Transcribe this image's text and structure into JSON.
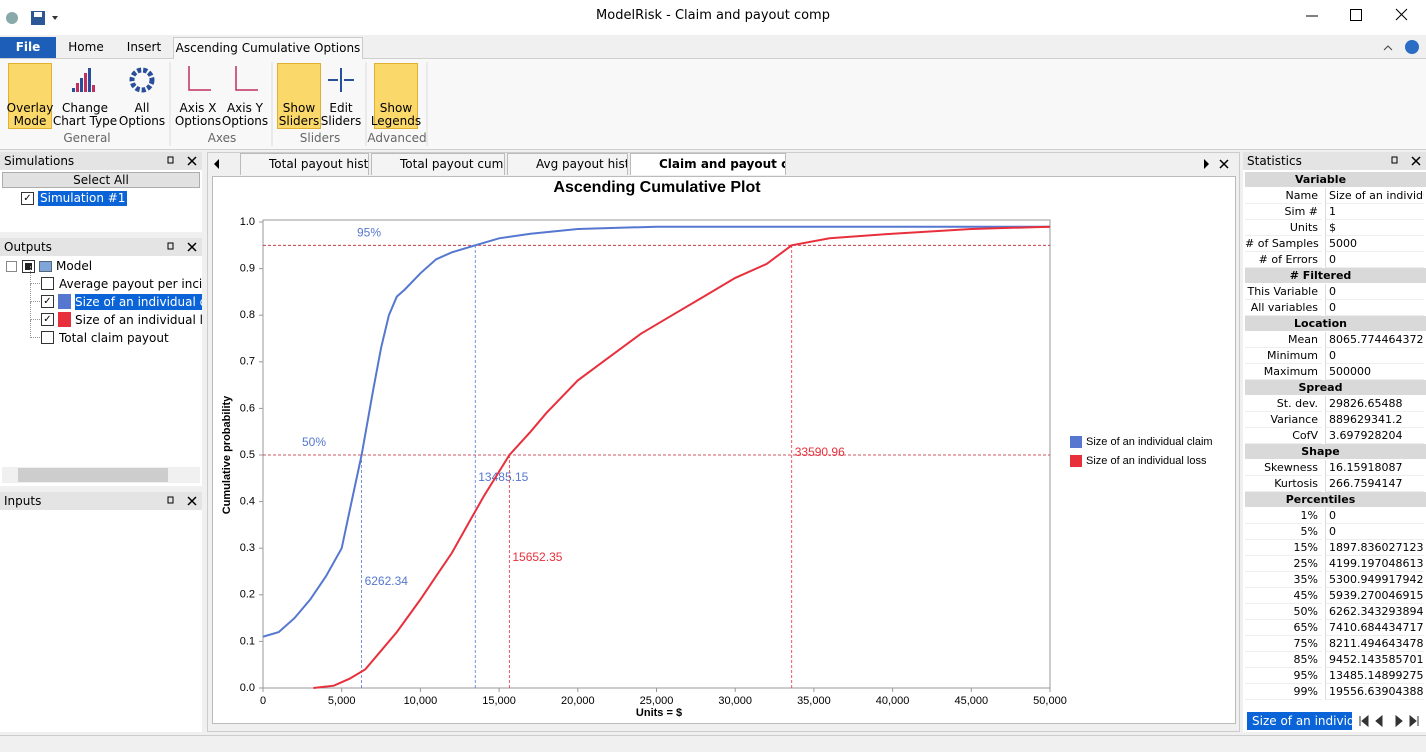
{
  "window": {
    "title": "ModelRisk - Claim and payout comp"
  },
  "ribbon": {
    "tabs": [
      "File",
      "Home",
      "Insert",
      "Ascending Cumulative Options"
    ],
    "groups": [
      {
        "label": "General",
        "buttons": [
          {
            "lines": [
              "Overlay",
              "Mode"
            ],
            "active": true
          },
          {
            "lines": [
              "Change",
              "Chart Type"
            ],
            "active": false
          },
          {
            "lines": [
              "All",
              "Options"
            ],
            "active": false
          }
        ]
      },
      {
        "label": "Axes",
        "buttons": [
          {
            "lines": [
              "Axis X",
              "Options"
            ],
            "active": false
          },
          {
            "lines": [
              "Axis Y",
              "Options"
            ],
            "active": false
          }
        ]
      },
      {
        "label": "Sliders",
        "buttons": [
          {
            "lines": [
              "Show",
              "Sliders"
            ],
            "active": true
          },
          {
            "lines": [
              "Edit",
              "Sliders"
            ],
            "active": false
          }
        ]
      },
      {
        "label": "Advanced",
        "buttons": [
          {
            "lines": [
              "Show",
              "Legends"
            ],
            "active": true
          }
        ]
      }
    ]
  },
  "panels": {
    "simulations": {
      "title": "Simulations",
      "select_all": "Select All",
      "items": [
        "Simulation #1"
      ]
    },
    "outputs": {
      "title": "Outputs",
      "root": "Model",
      "items": [
        "Average payout per incident",
        "Size of an individual claim",
        "Size of an individual loss",
        "Total claim payout"
      ]
    },
    "inputs": {
      "title": "Inputs"
    }
  },
  "document_tabs": [
    "Total payout histo",
    "Total payout cumul",
    "Avg payout histo",
    "Claim and payout comp"
  ],
  "chart_data": {
    "type": "line",
    "title": "Ascending Cumulative Plot",
    "x_label": "Units = $",
    "y_label": "Cumulative probability",
    "legend": "right",
    "grid": false,
    "xlim": [
      0,
      50000
    ],
    "ylim": [
      0,
      1
    ],
    "xticks": [
      0,
      {
        "value": 5000,
        "label": "5,000"
      },
      {
        "value": 10000,
        "label": "10,000"
      },
      {
        "value": 15000,
        "label": "15,000"
      },
      {
        "value": 20000,
        "label": "20,000"
      },
      {
        "value": 25000,
        "label": "25,000"
      },
      {
        "value": 30000,
        "label": "30,000"
      },
      {
        "value": 35000,
        "label": "35,000"
      },
      {
        "value": 40000,
        "label": "40,000"
      },
      {
        "value": 45000,
        "label": "45,000"
      },
      {
        "value": 50000,
        "label": "50,000"
      }
    ],
    "yticks": [
      {
        "value": 0,
        "label": "0.0"
      },
      0.1,
      0.2,
      0.3,
      0.4,
      0.5,
      0.6,
      0.7,
      0.8,
      0.9,
      {
        "value": 1,
        "label": "1.0"
      }
    ],
    "sliders": [
      {
        "value": 0.5,
        "label": "50%"
      },
      {
        "value": 0.95,
        "label": "95%"
      }
    ],
    "series": [
      {
        "name": "Size of an individual claim",
        "color": "#5577cf",
        "x": [
          0,
          1000,
          2000,
          3000,
          4000,
          5000,
          5500,
          6262.34,
          7000,
          7500,
          8000,
          8500,
          9000,
          10000,
          11000,
          12000,
          13485.15,
          15000,
          17000,
          20000,
          25000,
          30000,
          40000,
          50000
        ],
        "values": [
          0.11,
          0.12,
          0.15,
          0.19,
          0.24,
          0.3,
          0.38,
          0.5,
          0.64,
          0.73,
          0.8,
          0.84,
          0.855,
          0.89,
          0.92,
          0.935,
          0.95,
          0.965,
          0.975,
          0.985,
          0.99,
          0.99,
          0.99,
          0.99
        ],
        "percentile_x": [
          6262.34,
          13485.15
        ]
      },
      {
        "name": "Size of an individual loss",
        "color": "#e8303c",
        "x": [
          3200,
          4500,
          5500,
          6500,
          7500,
          8500,
          10000,
          11000,
          12000,
          13000,
          14000,
          15652.35,
          17000,
          18000,
          20000,
          22000,
          24000,
          26000,
          28000,
          30000,
          32000,
          33590.96,
          36000,
          40000,
          45000,
          50000
        ],
        "values": [
          0,
          0.005,
          0.02,
          0.04,
          0.08,
          0.12,
          0.19,
          0.24,
          0.29,
          0.35,
          0.41,
          0.5,
          0.55,
          0.59,
          0.66,
          0.71,
          0.76,
          0.8,
          0.84,
          0.88,
          0.91,
          0.95,
          0.965,
          0.975,
          0.985,
          0.99
        ],
        "percentile_x": [
          15652.35,
          33590.96
        ]
      }
    ]
  },
  "statistics": {
    "title": "Statistics",
    "sections": [
      {
        "heading": "Variable",
        "rows": [
          [
            "Name",
            "Size of an individual claim"
          ],
          [
            "Sim #",
            "1"
          ],
          [
            "Units",
            "$"
          ],
          [
            "# of Samples",
            "5000"
          ],
          [
            "# of Errors",
            "0"
          ]
        ]
      },
      {
        "heading": "# Filtered",
        "rows": [
          [
            "This Variable",
            "0"
          ],
          [
            "All variables",
            "0"
          ]
        ]
      },
      {
        "heading": "Location",
        "rows": [
          [
            "Mean",
            "8065.77446437202"
          ],
          [
            "Minimum",
            "0"
          ],
          [
            "Maximum",
            "500000"
          ]
        ]
      },
      {
        "heading": "Spread",
        "rows": [
          [
            "St. dev.",
            "29826.65488"
          ],
          [
            "Variance",
            "889629341.2"
          ],
          [
            "CofV",
            "3.697928204"
          ]
        ]
      },
      {
        "heading": "Shape",
        "rows": [
          [
            "Skewness",
            "16.15918087"
          ],
          [
            "Kurtosis",
            "266.7594147"
          ]
        ]
      },
      {
        "heading": "Percentiles",
        "rows": [
          [
            "1%",
            "0"
          ],
          [
            "5%",
            "0"
          ],
          [
            "15%",
            "1897.83602712351"
          ],
          [
            "25%",
            "4199.19704861346"
          ],
          [
            "35%",
            "5300.94991794255"
          ],
          [
            "45%",
            "5939.27004691566"
          ],
          [
            "50%",
            "6262.34329389416"
          ],
          [
            "65%",
            "7410.68443471769"
          ],
          [
            "75%",
            "8211.49464347873"
          ],
          [
            "85%",
            "9452.14358570174"
          ],
          [
            "95%",
            "13485.1489927528"
          ],
          [
            "99%",
            "19556.6390438899"
          ]
        ]
      }
    ]
  },
  "sheet_tab": "Size of an individual claim"
}
